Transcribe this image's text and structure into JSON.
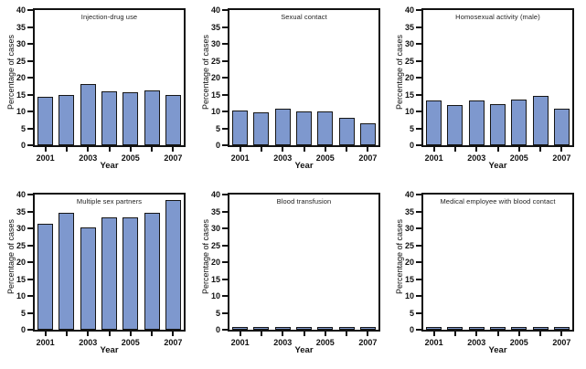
{
  "colors": {
    "bar_fill": "#7E98CE",
    "bar_border": "#161616",
    "axis": "#121212",
    "background": "#FFFFFF"
  },
  "chart_data": [
    {
      "type": "bar",
      "title": "Injection-drug use",
      "xlabel": "Year",
      "ylabel": "Percentage of cases",
      "x": [
        2001,
        2002,
        2003,
        2004,
        2005,
        2006,
        2007
      ],
      "x_tick_labels_shown": [
        "2001",
        "2003",
        "2005",
        "2007"
      ],
      "values": [
        14.3,
        15.0,
        18.0,
        16.0,
        15.6,
        16.2,
        15.0
      ],
      "ylim": [
        0,
        40
      ],
      "ytick_step": 5,
      "grid": false,
      "legend": "none"
    },
    {
      "type": "bar",
      "title": "Sexual contact",
      "xlabel": "Year",
      "ylabel": "Percentage of cases",
      "x": [
        2001,
        2002,
        2003,
        2004,
        2005,
        2006,
        2007
      ],
      "x_tick_labels_shown": [
        "2001",
        "2003",
        "2005",
        "2007"
      ],
      "values": [
        10.4,
        9.6,
        10.9,
        9.9,
        9.9,
        8.0,
        6.5
      ],
      "ylim": [
        0,
        40
      ],
      "ytick_step": 5,
      "grid": false,
      "legend": "none"
    },
    {
      "type": "bar",
      "title": "Homosexual activity (male)",
      "xlabel": "Year",
      "ylabel": "Percentage of cases",
      "x": [
        2001,
        2002,
        2003,
        2004,
        2005,
        2006,
        2007
      ],
      "x_tick_labels_shown": [
        "2001",
        "2003",
        "2005",
        "2007"
      ],
      "values": [
        13.2,
        12.0,
        13.2,
        12.2,
        13.6,
        14.7,
        10.7
      ],
      "ylim": [
        0,
        40
      ],
      "ytick_step": 5,
      "grid": false,
      "legend": "none"
    },
    {
      "type": "bar",
      "title": "Multiple sex partners",
      "xlabel": "Year",
      "ylabel": "Percentage of cases",
      "x": [
        2001,
        2002,
        2003,
        2004,
        2005,
        2006,
        2007
      ],
      "x_tick_labels_shown": [
        "2001",
        "2003",
        "2005",
        "2007"
      ],
      "values": [
        31.4,
        34.5,
        30.3,
        33.2,
        33.3,
        34.7,
        38.5
      ],
      "ylim": [
        0,
        40
      ],
      "ytick_step": 5,
      "grid": false,
      "legend": "none"
    },
    {
      "type": "bar",
      "title": "Blood transfusion",
      "xlabel": "Year",
      "ylabel": "Percentage of cases",
      "x": [
        2001,
        2002,
        2003,
        2004,
        2005,
        2006,
        2007
      ],
      "x_tick_labels_shown": [
        "2001",
        "2003",
        "2005",
        "2007"
      ],
      "values": [
        0.8,
        0.5,
        0.5,
        0.8,
        0.4,
        0.7,
        0.7
      ],
      "ylim": [
        0,
        40
      ],
      "ytick_step": 5,
      "grid": false,
      "legend": "none"
    },
    {
      "type": "bar",
      "title": "Medical employee with blood contact",
      "xlabel": "Year",
      "ylabel": "Percentage of cases",
      "x": [
        2001,
        2002,
        2003,
        2004,
        2005,
        2006,
        2007
      ],
      "x_tick_labels_shown": [
        "2001",
        "2003",
        "2005",
        "2007"
      ],
      "values": [
        0.8,
        0.6,
        0.6,
        0.6,
        0.8,
        0.6,
        0.6
      ],
      "ylim": [
        0,
        40
      ],
      "ytick_step": 5,
      "grid": false,
      "legend": "none"
    }
  ]
}
